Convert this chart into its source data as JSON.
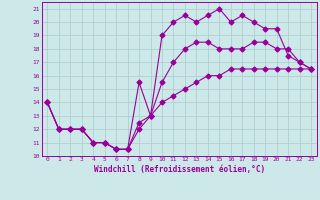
{
  "xlabel": "Windchill (Refroidissement éolien,°C)",
  "bg_color": "#cce8e8",
  "grid_color": "#aacccc",
  "line_color": "#990099",
  "xlim": [
    -0.5,
    23.5
  ],
  "ylim": [
    10,
    21.5
  ],
  "xticks": [
    0,
    1,
    2,
    3,
    4,
    5,
    6,
    7,
    8,
    9,
    10,
    11,
    12,
    13,
    14,
    15,
    16,
    17,
    18,
    19,
    20,
    21,
    22,
    23
  ],
  "yticks": [
    10,
    11,
    12,
    13,
    14,
    15,
    16,
    17,
    18,
    19,
    20,
    21
  ],
  "line1_x": [
    0,
    1,
    2,
    3,
    4,
    5,
    6,
    7,
    8,
    9,
    10,
    11,
    12,
    13,
    14,
    15,
    16,
    17,
    18,
    19,
    20,
    21,
    22,
    23
  ],
  "line1_y": [
    14,
    12,
    12,
    12,
    11,
    11,
    10.5,
    10.5,
    15.5,
    13,
    19,
    20,
    20.5,
    20,
    20.5,
    21,
    20,
    20.5,
    20,
    19.5,
    19.5,
    17.5,
    17,
    16.5
  ],
  "line2_x": [
    0,
    1,
    2,
    3,
    4,
    5,
    6,
    7,
    8,
    9,
    10,
    11,
    12,
    13,
    14,
    15,
    16,
    17,
    18,
    19,
    20,
    21,
    22,
    23
  ],
  "line2_y": [
    14,
    12,
    12,
    12,
    11,
    11,
    10.5,
    10.5,
    12.5,
    13,
    15.5,
    17,
    18,
    18.5,
    18.5,
    18,
    18,
    18,
    18.5,
    18.5,
    18,
    18,
    17,
    16.5
  ],
  "line3_x": [
    0,
    1,
    2,
    3,
    4,
    5,
    6,
    7,
    8,
    9,
    10,
    11,
    12,
    13,
    14,
    15,
    16,
    17,
    18,
    19,
    20,
    21,
    22,
    23
  ],
  "line3_y": [
    14,
    12,
    12,
    12,
    11,
    11,
    10.5,
    10.5,
    12,
    13,
    14,
    14.5,
    15,
    15.5,
    16,
    16,
    16.5,
    16.5,
    16.5,
    16.5,
    16.5,
    16.5,
    16.5,
    16.5
  ],
  "marker": "D",
  "markersize": 2.5,
  "linewidth": 0.8
}
